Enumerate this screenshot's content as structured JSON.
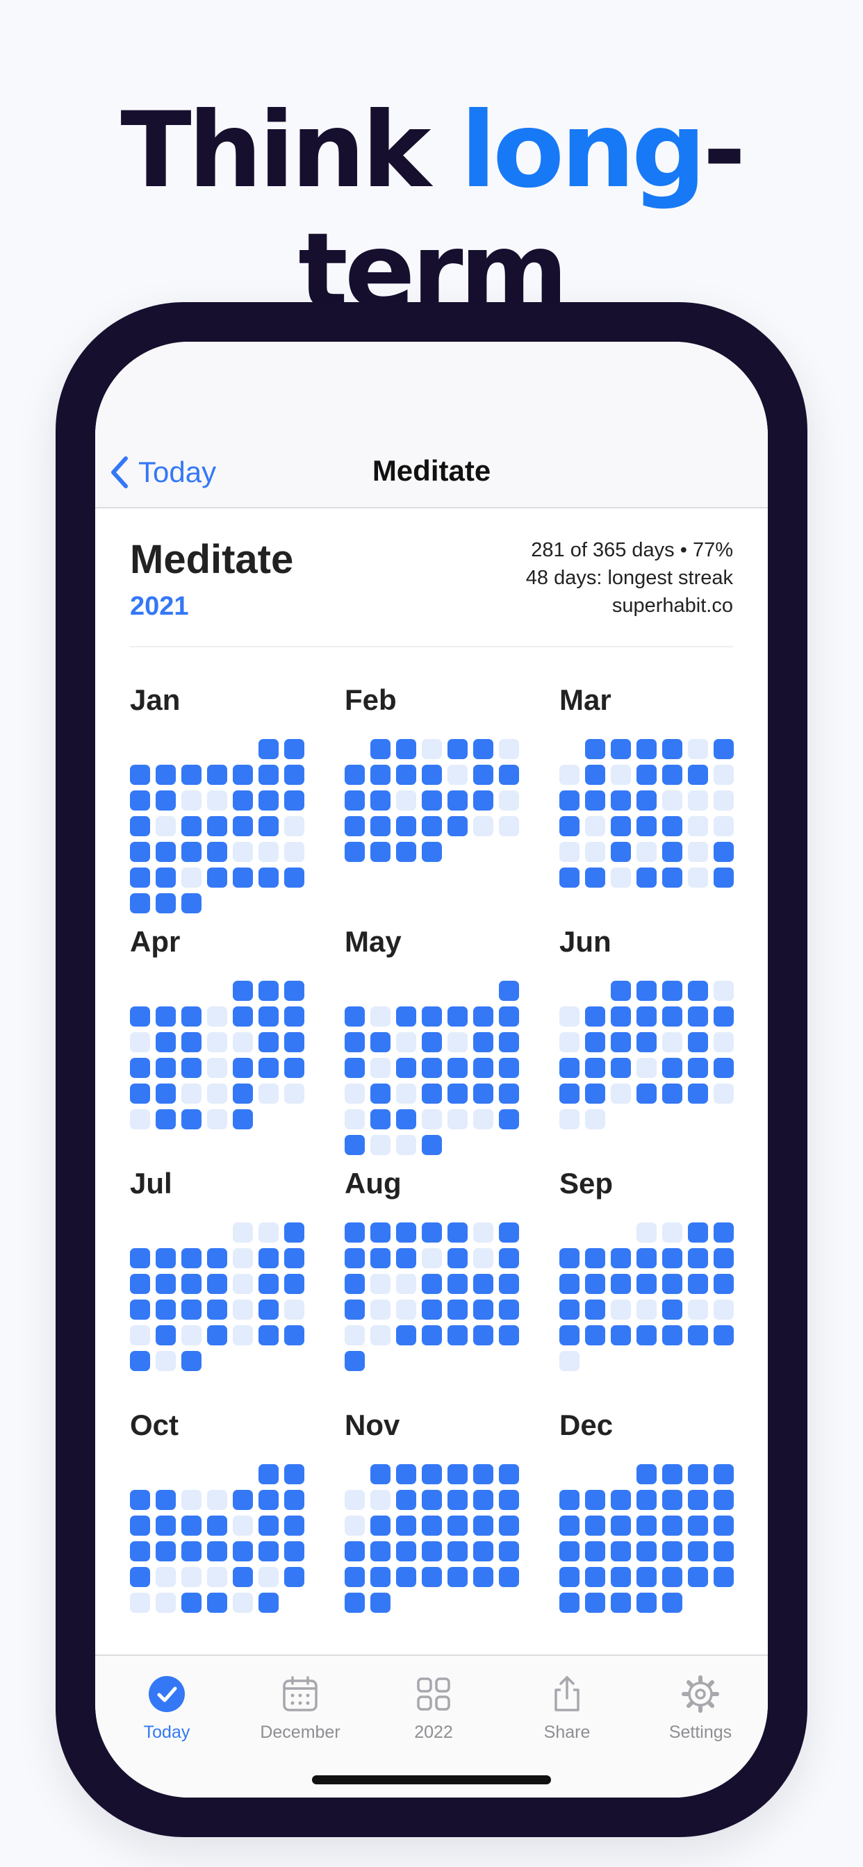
{
  "headline": {
    "part1": "Think ",
    "accent": "long",
    "part2": "-term"
  },
  "colors": {
    "accent": "#3478f6",
    "completed": "#3478f6",
    "missed": "#e2ecfc",
    "phone_frame": "#160f2e"
  },
  "nav": {
    "back_label": "Today",
    "title": "Meditate",
    "back_icon": "chevron-left-icon"
  },
  "habit": {
    "name": "Meditate",
    "year": "2021",
    "stats": [
      "281 of 365 days • 77%",
      "48 days: longest streak",
      "superhabit.co"
    ]
  },
  "months": [
    {
      "name": "Jan",
      "offset": 5,
      "days": "1111111111100111101111011110001101111111"
    },
    {
      "name": "Feb",
      "offset": 1,
      "days": "1101101111011110111011111001111"
    },
    {
      "name": "Mar",
      "offset": 1,
      "days": "11110101011101111000101110000101011101101"
    },
    {
      "name": "Apr",
      "offset": 4,
      "days": "111111011101100111110111110010001101"
    },
    {
      "name": "May",
      "offset": 6,
      "days": "1101111111010111011111010111101100011001"
    },
    {
      "name": "Jun",
      "offset": 2,
      "days": "11110011111101110101110111110111000"
    },
    {
      "name": "Jul",
      "offset": 4,
      "days": "0011111011111101111110100101011101"
    },
    {
      "name": "Aug",
      "offset": 0,
      "days": "111110111101011001111100111100111111"
    },
    {
      "name": "Sep",
      "offset": 3,
      "days": "001111111111111111110010011111110"
    },
    {
      "name": "Oct",
      "offset": 5,
      "days": "111100111111101111111111000101001101"
    },
    {
      "name": "Nov",
      "offset": 1,
      "days": "111111001111101111111111111111111111"
    },
    {
      "name": "Dec",
      "offset": 3,
      "days": "1111111111111111111111111111111111111"
    }
  ],
  "tabs": [
    {
      "label": "Today",
      "icon": "checkmark-circle-icon",
      "active": true
    },
    {
      "label": "December",
      "icon": "calendar-icon",
      "active": false
    },
    {
      "label": "2022",
      "icon": "grid-icon",
      "active": false
    },
    {
      "label": "Share",
      "icon": "share-icon",
      "active": false
    },
    {
      "label": "Settings",
      "icon": "gear-icon",
      "active": false
    }
  ]
}
